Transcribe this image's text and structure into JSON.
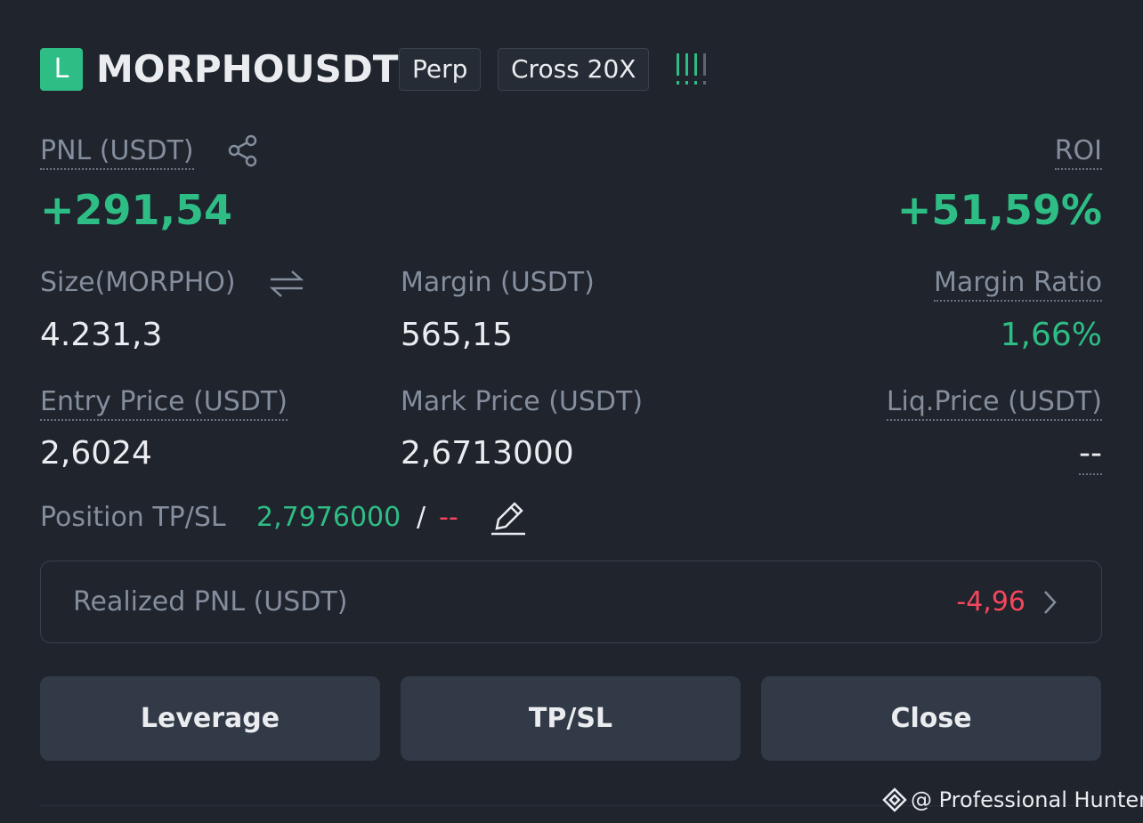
{
  "header": {
    "side": "L",
    "symbol": "MORPHOUSDT",
    "tags": [
      "Perp",
      "Cross 20X"
    ]
  },
  "pnl": {
    "label": "PNL (USDT)",
    "value": "+291,54"
  },
  "roi": {
    "label": "ROI",
    "value": "+51,59%"
  },
  "fields": [
    {
      "label": "Size(MORPHO)",
      "value": "4.231,3"
    },
    {
      "label": "Margin (USDT)",
      "value": "565,15"
    },
    {
      "label": "Margin Ratio",
      "value": "1,66%"
    },
    {
      "label": "Entry Price (USDT)",
      "value": "2,6024"
    },
    {
      "label": "Mark Price (USDT)",
      "value": "2,6713000"
    },
    {
      "label": "Liq.Price (USDT)",
      "value": "--"
    }
  ],
  "tpsl": {
    "label": "Position TP/SL",
    "tp": "2,7976000",
    "separator": "/",
    "sl": "--"
  },
  "realized": {
    "label": "Realized PNL (USDT)",
    "value": "-4,96"
  },
  "buttons": [
    "Leverage",
    "TP/SL",
    "Close"
  ],
  "watermark": "@ Professional Hunter"
}
